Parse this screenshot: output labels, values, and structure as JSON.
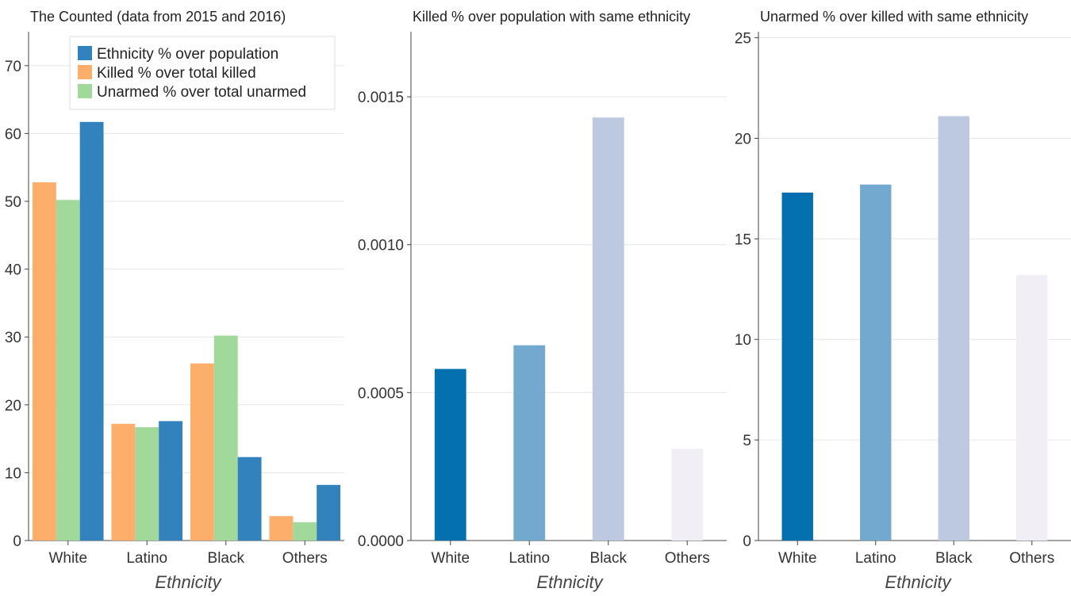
{
  "chart_data": [
    {
      "type": "bar",
      "title": "The Counted (data from 2015 and 2016)",
      "xlabel": "Ethnicity",
      "ylabel": "",
      "ylim": [
        0,
        75
      ],
      "yticks": [
        "0",
        "10",
        "20",
        "30",
        "40",
        "50",
        "60",
        "70"
      ],
      "grid": true,
      "legend_placement": "top-right",
      "categories": [
        "White",
        "Latino",
        "Black",
        "Others"
      ],
      "series": [
        {
          "name": "Killed % over total killed",
          "color": "#fdae6b",
          "values": [
            52.8,
            17.2,
            26.1,
            3.6
          ]
        },
        {
          "name": "Unarmed % over total unarmed",
          "color": "#a1d99b",
          "values": [
            50.2,
            16.7,
            30.2,
            2.7
          ]
        },
        {
          "name": "Ethnicity % over population",
          "color": "#3182bd",
          "values": [
            61.7,
            17.6,
            12.3,
            8.2
          ]
        }
      ],
      "legend_order": [
        "Ethnicity % over population",
        "Killed % over total killed",
        "Unarmed % over total unarmed"
      ]
    },
    {
      "type": "bar",
      "title": "Killed % over population with same ethnicity",
      "xlabel": "Ethnicity",
      "ylabel": "",
      "ylim": [
        0,
        0.00172
      ],
      "yticks": [
        "0.0000",
        "0.0005",
        "0.0010",
        "0.0015"
      ],
      "grid": true,
      "categories": [
        "White",
        "Latino",
        "Black",
        "Others"
      ],
      "colors": [
        "#0570b0",
        "#74a9cf",
        "#bdc9e1",
        "#f1eef6"
      ],
      "values": [
        0.00058,
        0.00066,
        0.00143,
        0.00031
      ]
    },
    {
      "type": "bar",
      "title": "Unarmed % over killed with same ethnicity",
      "xlabel": "Ethnicity",
      "ylabel": "",
      "ylim": [
        0,
        25.3
      ],
      "yticks": [
        "0",
        "5",
        "10",
        "15",
        "20",
        "25"
      ],
      "grid": true,
      "categories": [
        "White",
        "Latino",
        "Black",
        "Others"
      ],
      "colors": [
        "#0570b0",
        "#74a9cf",
        "#bdc9e1",
        "#f1eef6"
      ],
      "values": [
        17.3,
        17.7,
        21.1,
        13.2
      ]
    }
  ]
}
